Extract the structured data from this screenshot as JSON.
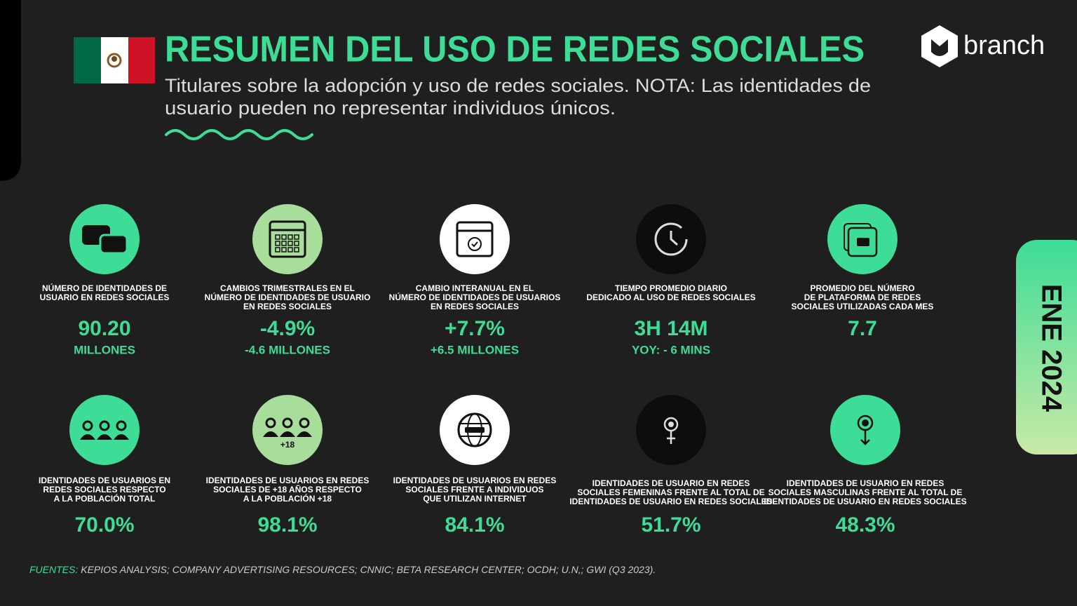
{
  "header": {
    "title": "RESUMEN DEL USO DE REDES SOCIALES",
    "subtitle_lines": [
      "Titulares sobre la adopción y uso de redes sociales. NOTA: Las identidades de",
      "usuario pueden no representar individuos únicos."
    ]
  },
  "brand": "branch",
  "period": "ENE 2024",
  "stats": [
    {
      "label": [
        "NÚMERO DE IDENTIDADES DE",
        "USUARIO EN REDES SOCIALES"
      ],
      "value": "90.20",
      "sub": "MILLONES"
    },
    {
      "label": [
        "CAMBIOS TRIMESTRALES EN EL",
        "NÚMERO DE IDENTIDADES DE USUARIO",
        "EN REDES SOCIALES"
      ],
      "value": "-4.9%",
      "sub": "-4.6 MILLONES"
    },
    {
      "label": [
        "CAMBIO INTERANUAL EN EL",
        "NÚMERO DE IDENTIDADES DE USUARIOS",
        "EN REDES SOCIALES"
      ],
      "value": "+7.7%",
      "sub": "+6.5 MILLONES"
    },
    {
      "label": [
        "TIEMPO PROMEDIO DIARIO",
        "DEDICADO AL USO DE REDES SOCIALES"
      ],
      "value": "3H 14M",
      "sub": "YOY: - 6 MINS"
    },
    {
      "label": [
        "PROMEDIO DEL NÚMERO",
        "DE PLATAFORMA DE REDES",
        "SOCIALES UTILIZADAS CADA MES"
      ],
      "value": "7.7"
    },
    {
      "label": [
        "IDENTIDADES DE USUARIOS EN",
        "REDES SOCIALES RESPECTO",
        "A LA POBLACIÓN TOTAL"
      ],
      "value": "70.0%"
    },
    {
      "label": [
        "IDENTIDADES DE USUARIOS EN REDES",
        "SOCIALES  DE +18 AÑOS RESPECTO",
        "A LA POBLACIÓN  +18"
      ],
      "value": "98.1%",
      "icon_text": "+18"
    },
    {
      "label": [
        "IDENTIDADES DE USUARIOS EN REDES",
        "SOCIALES FRENTE A INDIVIDUOS",
        "QUE UTILIZAN INTERNET"
      ],
      "value": "84.1%"
    },
    {
      "label": [
        "IDENTIDADES DE USUARIO EN REDES",
        "SOCIALES FEMENINAS FRENTE AL TOTAL DE",
        "IDENTIDADES DE USUARIO EN REDES SOCIALES"
      ],
      "value": "51.7%"
    },
    {
      "label": [
        "IDENTIDADES DE USUARIO EN REDES",
        "SOCIALES MASCULINAS FRENTE AL TOTAL DE",
        "IDENTIDADES DE USUARIO EN REDES SOCIALES"
      ],
      "value": "48.3%"
    }
  ],
  "sources": {
    "label": "FUENTES:",
    "text": "KEPIOS ANALYSIS; COMPANY ADVERTISING RESOURCES; CNNIC; BETA RESEARCH CENTER; OCDH; U.N,; GWI (Q3 2023)."
  }
}
